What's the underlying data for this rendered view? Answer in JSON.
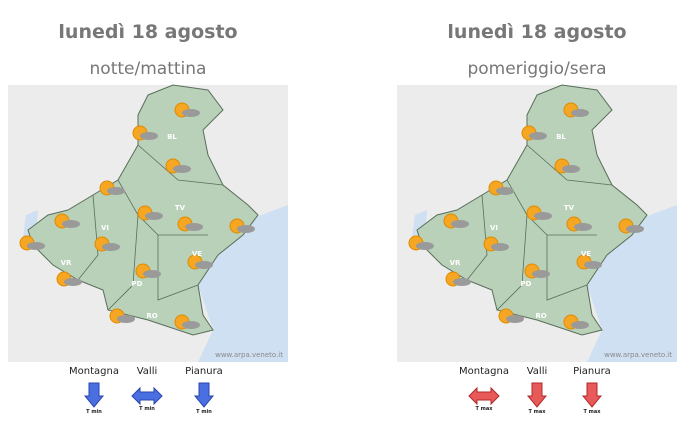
{
  "panels": [
    {
      "title": "lunedì 18 agosto",
      "subtitle": "notte/mattina",
      "map": {
        "labels": [
          "BL",
          "TV",
          "VI",
          "VR",
          "PD",
          "RO",
          "VE"
        ],
        "credit": "www.arpa.veneto.it"
      },
      "legend": [
        {
          "label": "Montagna",
          "trend": "T min"
        },
        {
          "label": "Valli",
          "trend": "T min"
        },
        {
          "label": "Pianura",
          "trend": "T min"
        }
      ]
    },
    {
      "title": "lunedì 18 agosto",
      "subtitle": "pomeriggio/sera",
      "map": {
        "labels": [
          "BL",
          "TV",
          "VI",
          "VR",
          "PD",
          "RO",
          "VE"
        ],
        "credit": "www.arpa.veneto.it"
      },
      "legend": [
        {
          "label": "Montagna",
          "trend": "T max"
        },
        {
          "label": "Valli",
          "trend": "T max"
        },
        {
          "label": "Pianura",
          "trend": "T max"
        }
      ]
    }
  ]
}
